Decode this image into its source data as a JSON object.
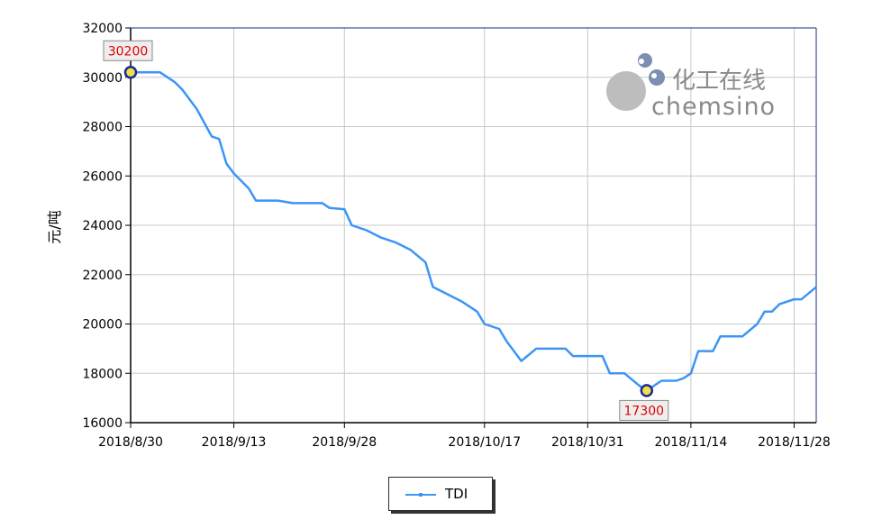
{
  "chart_data": {
    "type": "line",
    "ylabel": "元/吨",
    "xlabel": "",
    "title": "",
    "ylim": [
      16000,
      32000
    ],
    "yticks": [
      16000,
      18000,
      20000,
      22000,
      24000,
      26000,
      28000,
      30000,
      32000
    ],
    "xlim": [
      "2018/8/30",
      "2018/12/1"
    ],
    "xticks": [
      "2018/8/30",
      "2018/9/13",
      "2018/9/28",
      "2018/10/17",
      "2018/10/31",
      "2018/11/14",
      "2018/11/28"
    ],
    "grid": true,
    "legend_position": "bottom-center",
    "series": [
      {
        "name": "TDI",
        "color": "#3d95f4",
        "points": [
          [
            "2018/8/30",
            30200
          ],
          [
            "2018/9/1",
            30200
          ],
          [
            "2018/9/3",
            30200
          ],
          [
            "2018/9/5",
            29800
          ],
          [
            "2018/9/6",
            29500
          ],
          [
            "2018/9/8",
            28700
          ],
          [
            "2018/9/10",
            27600
          ],
          [
            "2018/9/11",
            27500
          ],
          [
            "2018/9/12",
            26500
          ],
          [
            "2018/9/13",
            26100
          ],
          [
            "2018/9/15",
            25500
          ],
          [
            "2018/9/16",
            25000
          ],
          [
            "2018/9/19",
            25000
          ],
          [
            "2018/9/21",
            24900
          ],
          [
            "2018/9/25",
            24900
          ],
          [
            "2018/9/26",
            24700
          ],
          [
            "2018/9/28",
            24650
          ],
          [
            "2018/9/29",
            24000
          ],
          [
            "2018/10/1",
            23800
          ],
          [
            "2018/10/3",
            23500
          ],
          [
            "2018/10/5",
            23300
          ],
          [
            "2018/10/7",
            23000
          ],
          [
            "2018/10/9",
            22500
          ],
          [
            "2018/10/10",
            21500
          ],
          [
            "2018/10/12",
            21200
          ],
          [
            "2018/10/14",
            20900
          ],
          [
            "2018/10/16",
            20500
          ],
          [
            "2018/10/17",
            20000
          ],
          [
            "2018/10/19",
            19800
          ],
          [
            "2018/10/20",
            19300
          ],
          [
            "2018/10/22",
            18500
          ],
          [
            "2018/10/24",
            19000
          ],
          [
            "2018/10/26",
            19000
          ],
          [
            "2018/10/28",
            19000
          ],
          [
            "2018/10/29",
            18700
          ],
          [
            "2018/10/31",
            18700
          ],
          [
            "2018/11/2",
            18700
          ],
          [
            "2018/11/3",
            18000
          ],
          [
            "2018/11/5",
            18000
          ],
          [
            "2018/11/7",
            17500
          ],
          [
            "2018/11/8",
            17300
          ],
          [
            "2018/11/10",
            17700
          ],
          [
            "2018/11/12",
            17700
          ],
          [
            "2018/11/13",
            17800
          ],
          [
            "2018/11/14",
            18000
          ],
          [
            "2018/11/15",
            18900
          ],
          [
            "2018/11/17",
            18900
          ],
          [
            "2018/11/18",
            19500
          ],
          [
            "2018/11/21",
            19500
          ],
          [
            "2018/11/23",
            20000
          ],
          [
            "2018/11/24",
            20500
          ],
          [
            "2018/11/25",
            20500
          ],
          [
            "2018/11/26",
            20800
          ],
          [
            "2018/11/28",
            21000
          ],
          [
            "2018/11/29",
            21000
          ],
          [
            "2018/12/1",
            21500
          ]
        ]
      }
    ],
    "annotations": [
      {
        "label": "30200",
        "x": "2018/8/30",
        "y": 30200,
        "kind": "max"
      },
      {
        "label": "17300",
        "x": "2018/11/8",
        "y": 17300,
        "kind": "min"
      }
    ]
  },
  "watermark": {
    "chinese": "化工在线",
    "latin": "chemsino"
  },
  "legend": {
    "label": "TDI"
  }
}
